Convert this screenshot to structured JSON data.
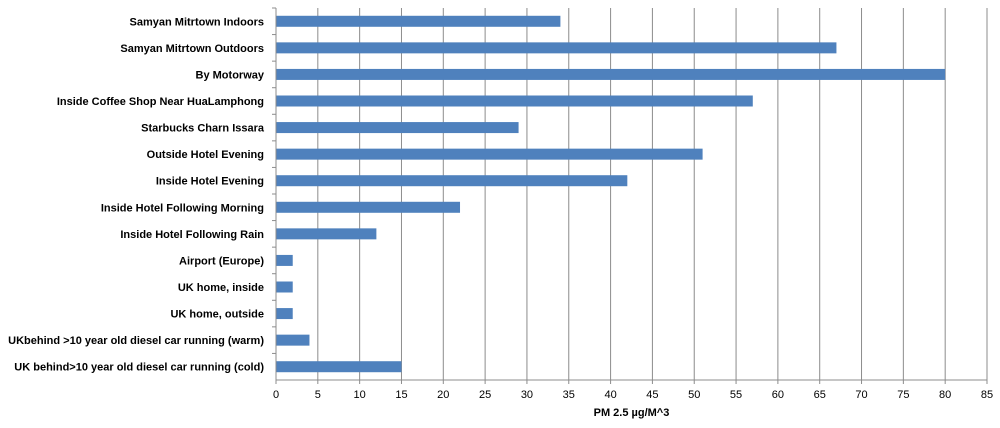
{
  "chart_data": {
    "type": "bar",
    "orientation": "horizontal",
    "categories": [
      "Samyan Mitrtown Indoors",
      "Samyan Mitrtown Outdoors",
      "By Motorway",
      "Inside Coffee Shop Near HuaLamphong",
      "Starbucks Charn Issara",
      "Outside Hotel Evening",
      "Inside Hotel Evening",
      "Inside Hotel Following Morning",
      "Inside Hotel Following Rain",
      "Airport  (Europe)",
      "UK home, inside",
      "UK home, outside",
      "UKbehind >10 year old diesel car running (warm)",
      "UK behind>10 year old diesel car running (cold)"
    ],
    "values": [
      34,
      67,
      80,
      57,
      29,
      51,
      42,
      22,
      12,
      2,
      2,
      2,
      4,
      15
    ],
    "title": "",
    "xlabel": "PM 2.5 µg/M^3",
    "ylabel": "",
    "xlim": [
      0,
      85
    ],
    "xticks": [
      "0",
      "5",
      "10",
      "15",
      "20",
      "25",
      "30",
      "35",
      "40",
      "45",
      "50",
      "55",
      "60",
      "65",
      "70",
      "75",
      "80",
      "85"
    ],
    "grid": "vertical",
    "legend": "none",
    "bar_color": "#4F81BD",
    "grid_color": "#8C8C8C"
  }
}
